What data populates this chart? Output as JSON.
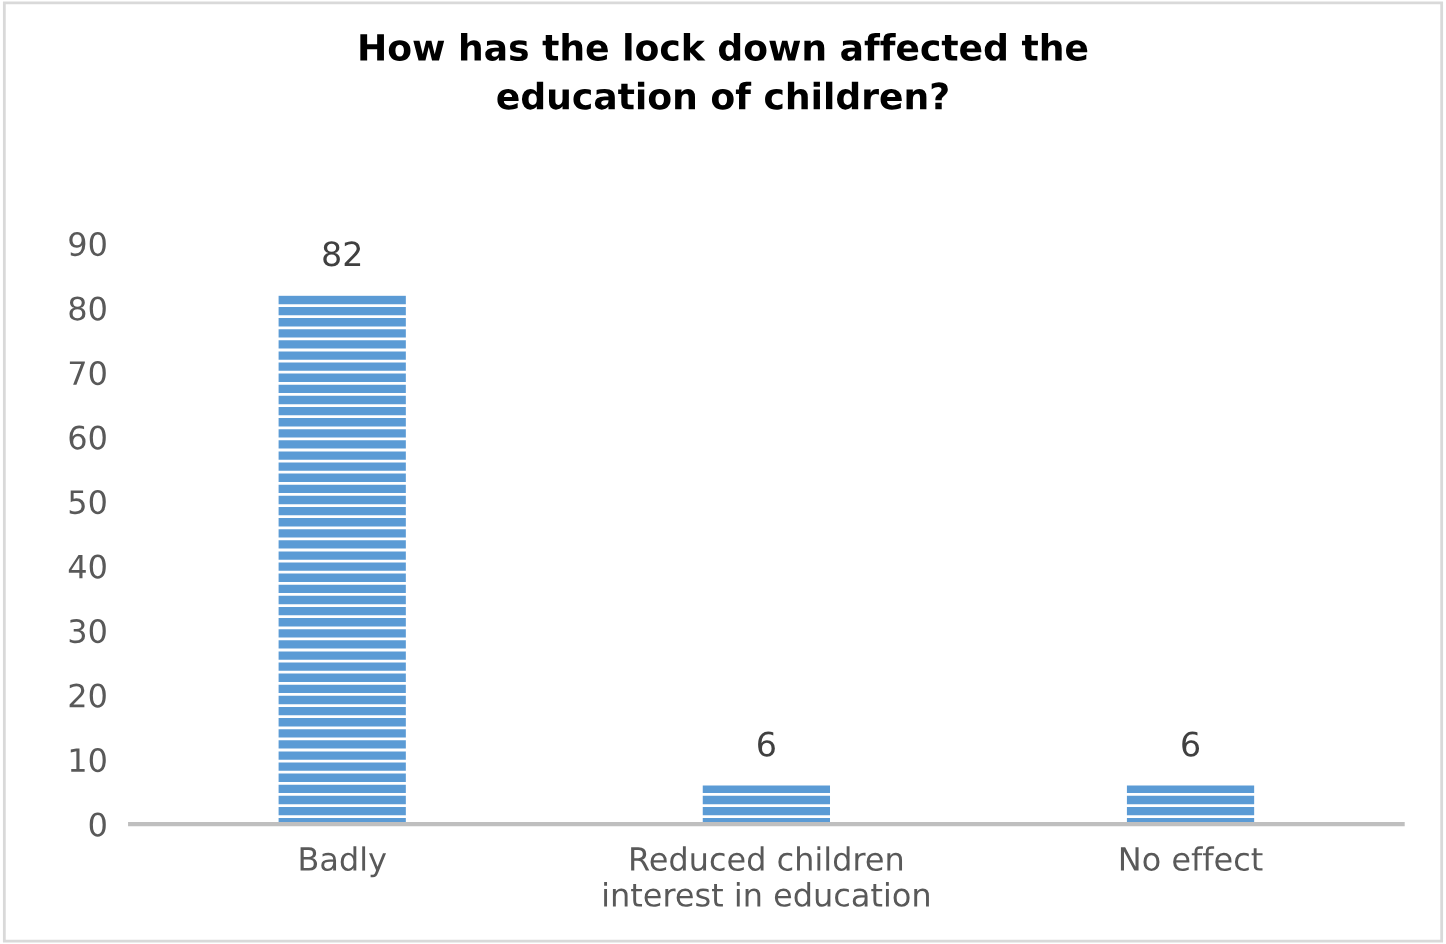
{
  "chart_data": {
    "type": "bar",
    "title": "How has the lock down affected the education of children?",
    "categories": [
      "Badly",
      "Reduced children interest in education",
      "No effect"
    ],
    "values": [
      82,
      6,
      6
    ],
    "color": "#5b9bd5",
    "ylim": [
      0,
      90
    ],
    "yticks": [
      0,
      10,
      20,
      30,
      40,
      50,
      60,
      70,
      80,
      90
    ],
    "data_labels": true,
    "grid": false,
    "legend": false
  }
}
